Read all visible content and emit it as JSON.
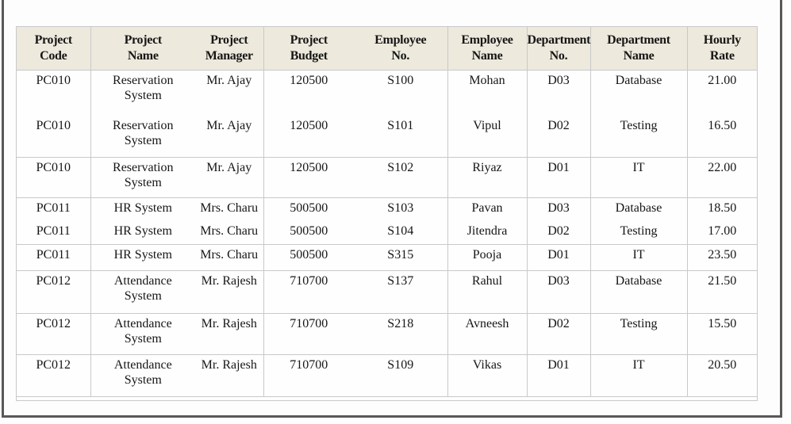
{
  "report_table": {
    "headers": [
      [
        "Project",
        "Code"
      ],
      [
        "Project",
        "Name"
      ],
      [
        "Project",
        "Manager"
      ],
      [
        "Project",
        "Budget"
      ],
      [
        "Employee",
        "No."
      ],
      [
        "Employee",
        "Name"
      ],
      [
        "Department",
        "No."
      ],
      [
        "Department",
        "Name"
      ],
      [
        "Hourly",
        "Rate"
      ]
    ],
    "rows": [
      [
        "PC010",
        "Reservation System",
        "Mr. Ajay",
        "120500",
        "S100",
        "Mohan",
        "D03",
        "Database",
        "21.00"
      ],
      [
        "PC010",
        "Reservation System",
        "Mr. Ajay",
        "120500",
        "S101",
        "Vipul",
        "D02",
        "Testing",
        "16.50"
      ],
      [
        "PC010",
        "Reservation System",
        "Mr. Ajay",
        "120500",
        "S102",
        "Riyaz",
        "D01",
        "IT",
        "22.00"
      ],
      [
        "PC011",
        "HR System",
        "Mrs. Charu",
        "500500",
        "S103",
        "Pavan",
        "D03",
        "Database",
        "18.50"
      ],
      [
        "PC011",
        "HR System",
        "Mrs. Charu",
        "500500",
        "S104",
        "Jitendra",
        "D02",
        "Testing",
        "17.00"
      ],
      [
        "PC011",
        "HR System",
        "Mrs. Charu",
        "500500",
        "S315",
        "Pooja",
        "D01",
        "IT",
        "23.50"
      ],
      [
        "PC012",
        "Attendance System",
        "Mr. Rajesh",
        "710700",
        "S137",
        "Rahul",
        "D03",
        "Database",
        "21.50"
      ],
      [
        "PC012",
        "Attendance System",
        "Mr. Rajesh",
        "710700",
        "S218",
        "Avneesh",
        "D02",
        "Testing",
        "15.50"
      ],
      [
        "PC012",
        "Attendance System",
        "Mr. Rajesh",
        "710700",
        "S109",
        "Vikas",
        "D01",
        "IT",
        "20.50"
      ]
    ]
  },
  "colors": {
    "header_bg": "#ede9dc",
    "grid_border": "#c9c9c9",
    "frame_border": "#58585a",
    "text": "#161616"
  }
}
